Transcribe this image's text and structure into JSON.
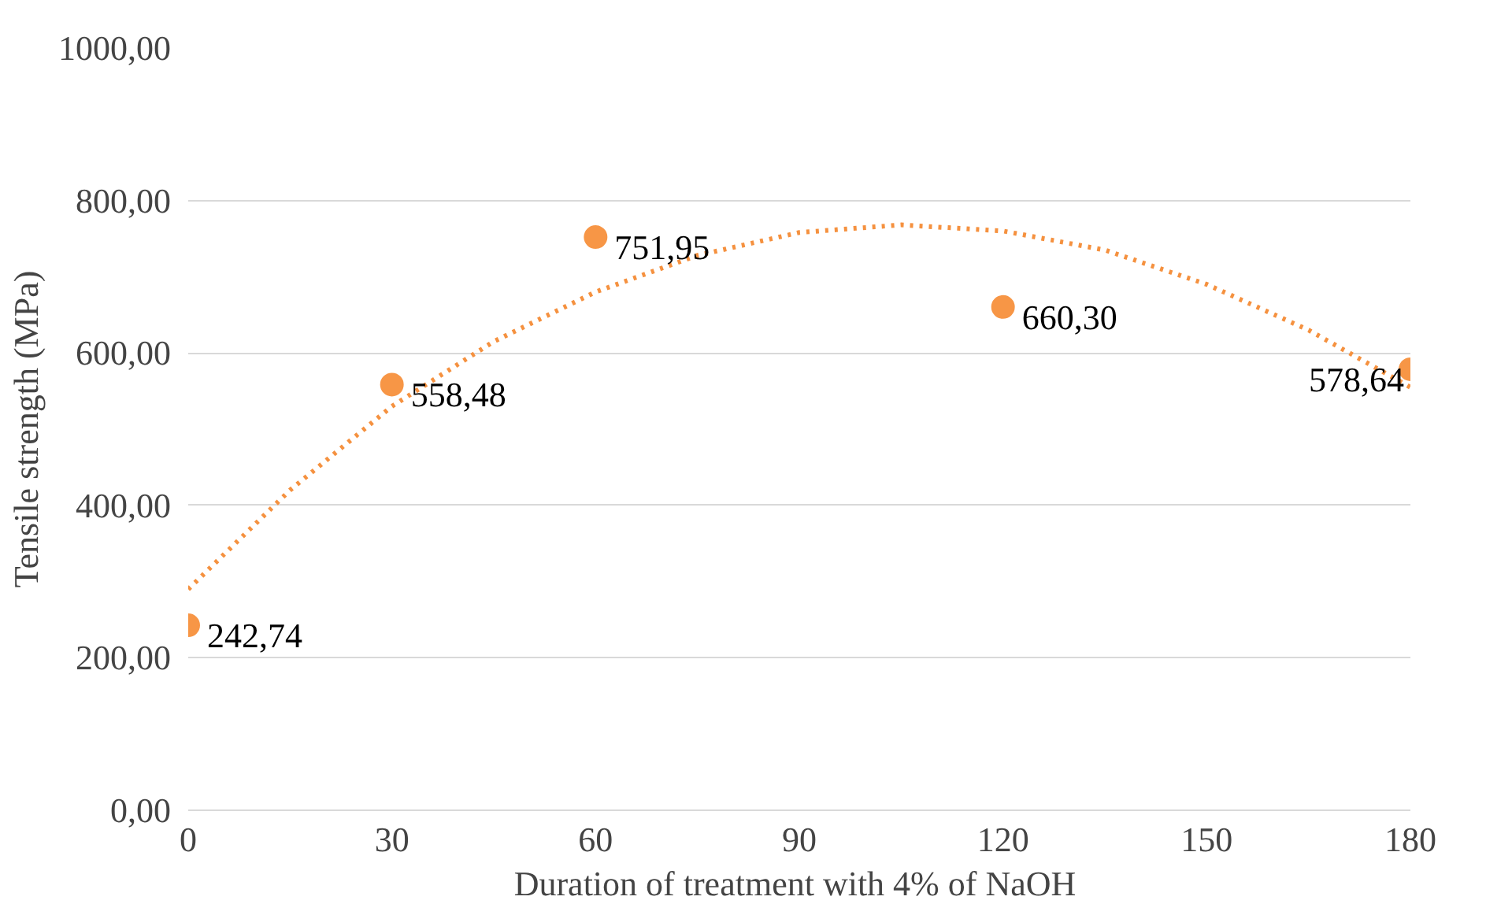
{
  "chart_data": {
    "type": "scatter",
    "xlabel": "Duration of treatment with  4% of NaOH",
    "ylabel": "Tensile strength (MPa)",
    "x": [
      0,
      30,
      60,
      120,
      180
    ],
    "series": [
      {
        "type": "scatter",
        "marker": "circle",
        "color": "#f79646",
        "values": [
          242.74,
          558.48,
          751.95,
          660.3,
          578.64
        ],
        "value_labels": [
          "242,74",
          "558,48",
          "751,95",
          "660,30",
          "578,64"
        ]
      },
      {
        "type": "line",
        "color": "#f5913f",
        "line_style": "dotted",
        "x": [
          0,
          15,
          30,
          45,
          60,
          75,
          90,
          105,
          120,
          135,
          150,
          165,
          180
        ],
        "values": [
          290,
          420,
          530,
          615,
          680,
          728,
          758,
          768,
          760,
          735,
          690,
          630,
          555
        ]
      }
    ],
    "xlim": [
      0,
      180
    ],
    "xticks": [
      0,
      30,
      60,
      90,
      120,
      150,
      180
    ],
    "ylim": [
      0,
      1000
    ],
    "yticks": [
      {
        "value": 0,
        "label": "0,00"
      },
      {
        "value": 200,
        "label": "200,00"
      },
      {
        "value": 400,
        "label": "400,00"
      },
      {
        "value": 600,
        "label": "600,00"
      },
      {
        "value": 800,
        "label": "800,00"
      },
      {
        "value": 1000,
        "label": "1000,00"
      }
    ],
    "grid": "y"
  }
}
